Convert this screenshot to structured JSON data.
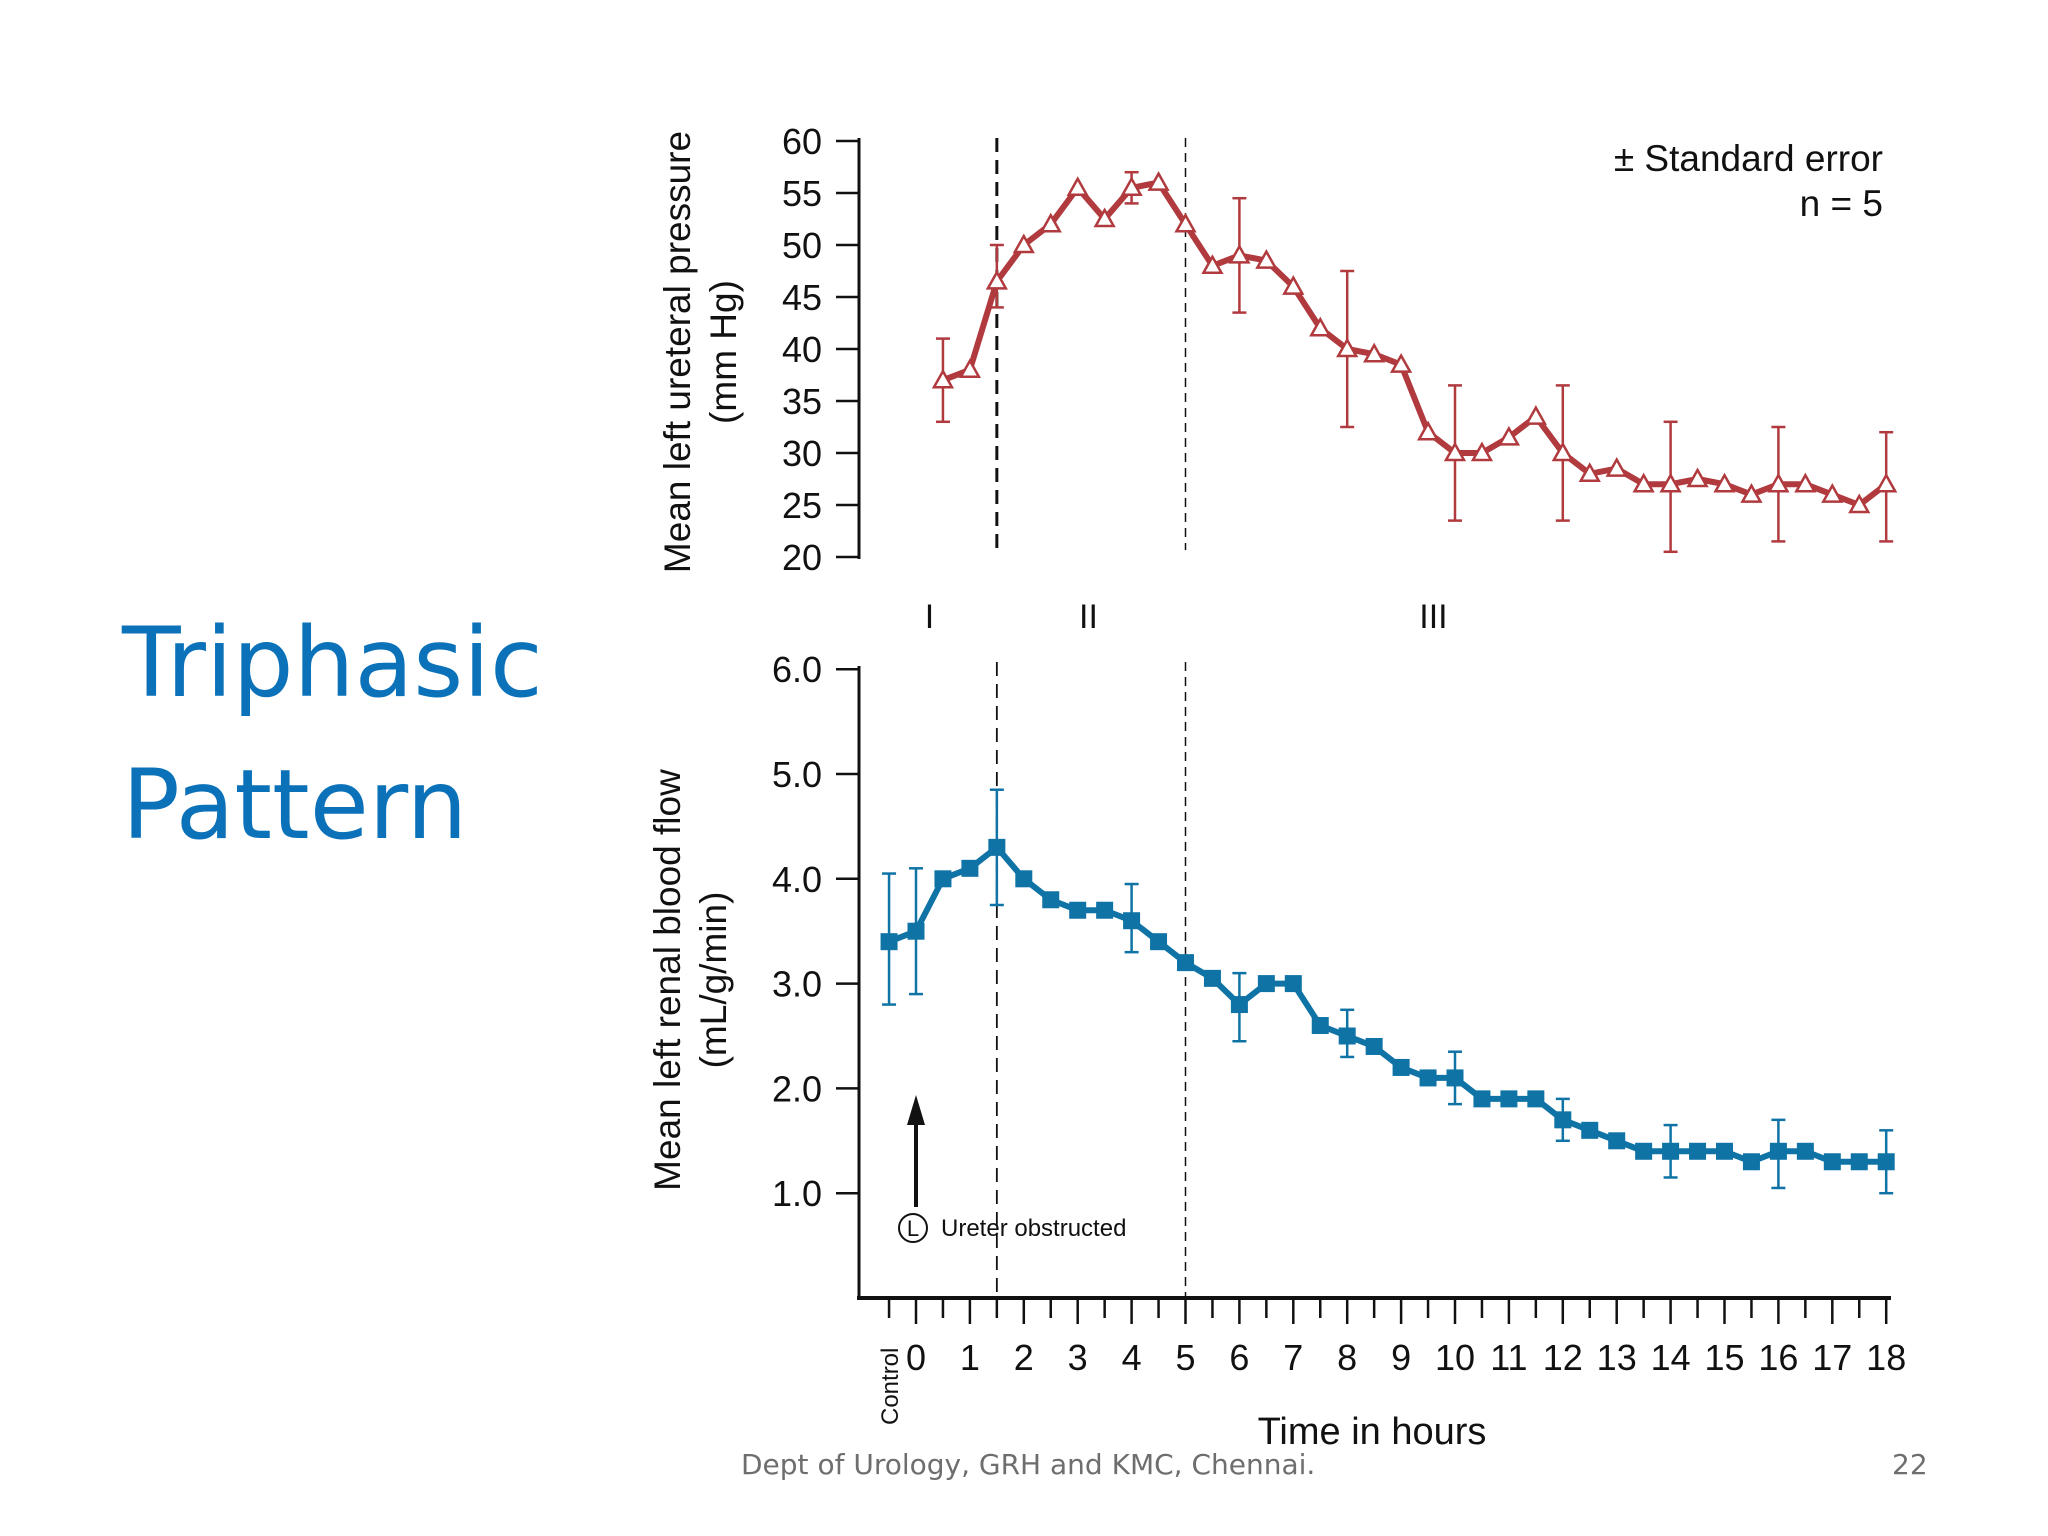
{
  "slide": {
    "title_line1": "Triphasic",
    "title_line2": "Pattern",
    "footer": "Dept of Urology, GRH and KMC, Chennai.",
    "page_number": "22"
  },
  "colors": {
    "title": "#0b72b9",
    "pressure": "#b13a3e",
    "flow": "#0f73a6",
    "axis": "#111111"
  },
  "chart_data": [
    {
      "type": "line",
      "ylabel_line1": "Mean left ureteral pressure",
      "ylabel_line2": "(mm Hg)",
      "ylim": [
        20,
        60
      ],
      "yticks": [
        60,
        55,
        50,
        45,
        40,
        35,
        30,
        25,
        20
      ],
      "legend_line1": "± Standard error",
      "legend_line2": "n = 5",
      "phase_labels": [
        {
          "label": "I",
          "x": 0.25
        },
        {
          "label": "II",
          "x": 3.2
        },
        {
          "label": "III",
          "x": 9.6
        }
      ],
      "phase_boundaries": [
        1.5,
        5
      ],
      "series": [
        {
          "name": "Mean left ureteral pressure",
          "marker": "open-triangle",
          "x": [
            0.5,
            1,
            1.5,
            2,
            2.5,
            3,
            3.5,
            4,
            4.5,
            5,
            5.5,
            6,
            6.5,
            7,
            7.5,
            8,
            8.5,
            9,
            9.5,
            10,
            10.5,
            11,
            11.5,
            12,
            12.5,
            13,
            13.5,
            14,
            14.5,
            15,
            15.5,
            16,
            16.5,
            17,
            17.5,
            18
          ],
          "values": [
            37,
            38,
            46.5,
            50,
            52,
            55.5,
            52.5,
            55.5,
            56,
            52,
            48,
            49,
            48.5,
            46,
            42,
            40,
            39.5,
            38.5,
            32,
            30,
            30,
            31.5,
            33.5,
            30,
            28,
            28.5,
            27,
            27,
            27.5,
            27,
            26,
            27,
            27,
            26,
            25,
            27
          ],
          "error_bars": [
            {
              "x": 0.5,
              "low": 33,
              "high": 41
            },
            {
              "x": 1.5,
              "low": 44,
              "high": 50
            },
            {
              "x": 4,
              "low": 54,
              "high": 57
            },
            {
              "x": 6,
              "low": 43.5,
              "high": 54.5
            },
            {
              "x": 8,
              "low": 32.5,
              "high": 47.5
            },
            {
              "x": 10,
              "low": 23.5,
              "high": 36.5
            },
            {
              "x": 12,
              "low": 23.5,
              "high": 36.5
            },
            {
              "x": 14,
              "low": 20.5,
              "high": 33
            },
            {
              "x": 16,
              "low": 21.5,
              "high": 32.5
            },
            {
              "x": 18,
              "low": 21.5,
              "high": 32
            }
          ]
        }
      ]
    },
    {
      "type": "line",
      "ylabel_line1": "Mean left renal blood flow",
      "ylabel_line2": "(mL/g/min)",
      "ylim": [
        0,
        6
      ],
      "yticks": [
        "6.0",
        "5.0",
        "4.0",
        "3.0",
        "2.0",
        "1.0"
      ],
      "xlabel": "Time in hours",
      "xticks": [
        "0",
        "1",
        "2",
        "3",
        "4",
        "5",
        "6",
        "7",
        "8",
        "9",
        "10",
        "11",
        "12",
        "13",
        "14",
        "15",
        "16",
        "17",
        "18"
      ],
      "control_label": "Control",
      "annotation": {
        "symbol": "L",
        "text": "Ureter obstructed",
        "x": 0
      },
      "phase_boundaries": [
        1.5,
        5
      ],
      "series": [
        {
          "name": "Mean left renal blood flow",
          "marker": "filled-square",
          "x": [
            -0.5,
            0,
            0.5,
            1,
            1.5,
            2,
            2.5,
            3,
            3.5,
            4,
            4.5,
            5,
            5.5,
            6,
            6.5,
            7,
            7.5,
            8,
            8.5,
            9,
            9.5,
            10,
            10.5,
            11,
            11.5,
            12,
            12.5,
            13,
            13.5,
            14,
            14.5,
            15,
            15.5,
            16,
            16.5,
            17,
            17.5,
            18
          ],
          "values": [
            3.4,
            3.5,
            4.0,
            4.1,
            4.3,
            4.0,
            3.8,
            3.7,
            3.7,
            3.6,
            3.4,
            3.2,
            3.05,
            2.8,
            3.0,
            3.0,
            2.6,
            2.5,
            2.4,
            2.2,
            2.1,
            2.1,
            1.9,
            1.9,
            1.9,
            1.7,
            1.6,
            1.5,
            1.4,
            1.4,
            1.4,
            1.4,
            1.3,
            1.4,
            1.4,
            1.3,
            1.3,
            1.3
          ],
          "error_bars": [
            {
              "x": -0.5,
              "low": 2.8,
              "high": 4.05
            },
            {
              "x": 0,
              "low": 2.9,
              "high": 4.1
            },
            {
              "x": 1.5,
              "low": 3.75,
              "high": 4.85
            },
            {
              "x": 4,
              "low": 3.3,
              "high": 3.95
            },
            {
              "x": 6,
              "low": 2.45,
              "high": 3.1
            },
            {
              "x": 8,
              "low": 2.3,
              "high": 2.75
            },
            {
              "x": 10,
              "low": 1.85,
              "high": 2.35
            },
            {
              "x": 12,
              "low": 1.5,
              "high": 1.9
            },
            {
              "x": 14,
              "low": 1.15,
              "high": 1.65
            },
            {
              "x": 16,
              "low": 1.05,
              "high": 1.7
            },
            {
              "x": 18,
              "low": 1.0,
              "high": 1.6
            }
          ]
        }
      ]
    }
  ]
}
